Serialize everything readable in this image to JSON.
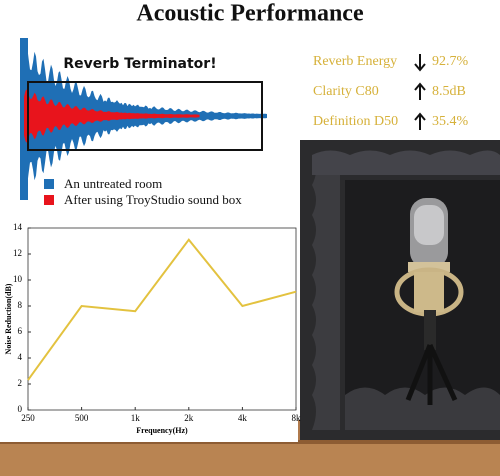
{
  "header": {
    "title": "Acoustic Performance"
  },
  "waveform": {
    "label": "Reverb Terminator!",
    "legend": [
      {
        "name": "An untreated room",
        "color": "#1f6fb5"
      },
      {
        "name": "After using TroyStudio sound box",
        "color": "#e8141c"
      }
    ]
  },
  "metrics": [
    {
      "label": "Reverb Energy",
      "value": "92.7%"
    },
    {
      "label": "Clarity C80",
      "value": "8.5dB"
    },
    {
      "label": "Definition D50",
      "value": "35.4%"
    }
  ],
  "chart_data": {
    "type": "line",
    "categories": [
      "250",
      "500",
      "1k",
      "2k",
      "4k",
      "8k"
    ],
    "values": [
      2.3,
      8,
      7.6,
      13.1,
      8,
      9.1
    ],
    "color": "#e3c23f",
    "ylim": [
      0,
      14
    ],
    "yticks": [
      0,
      2,
      4,
      6,
      8,
      10,
      12,
      14
    ],
    "xlabel": "Frequency(Hz)",
    "ylabel": "Noise Reduction(dB)"
  }
}
